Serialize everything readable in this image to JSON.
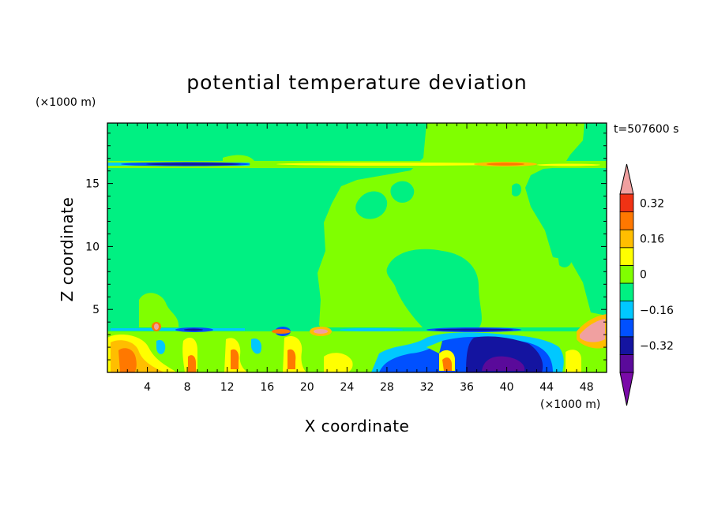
{
  "chart_data": {
    "type": "heatmap",
    "title": "potential temperature deviation",
    "xlabel": "X coordinate",
    "ylabel": "Z coordinate",
    "x_unit": "(×1000 m)",
    "y_unit": "(×1000 m)",
    "time_label": "t=507600 s",
    "xlim": [
      0,
      50
    ],
    "ylim": [
      0,
      19.8
    ],
    "x_ticks": [
      4,
      8,
      12,
      16,
      20,
      24,
      28,
      32,
      36,
      40,
      44,
      48
    ],
    "y_ticks": [
      5,
      10,
      15
    ],
    "colorbar": {
      "colors": [
        "#7a0aa8",
        "#5a0a9a",
        "#1414a0",
        "#0050ff",
        "#00c8ff",
        "#00f082",
        "#80ff00",
        "#ffff00",
        "#ffbe00",
        "#ff7800",
        "#f03214",
        "#f0a0a0"
      ],
      "tick_labels": [
        "0.32",
        "0.16",
        "0",
        "-0.16",
        "-0.32"
      ],
      "tick_values": [
        0.32,
        0.16,
        0,
        -0.16,
        -0.32
      ]
    },
    "background_level_upper": "#00f082",
    "band_level_mid": "#80ff00"
  }
}
